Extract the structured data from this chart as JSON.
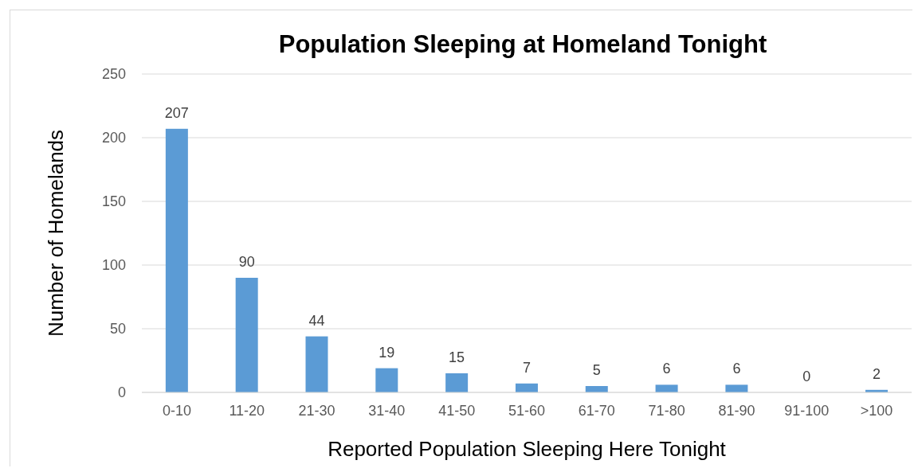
{
  "chart_data": {
    "type": "bar",
    "title": "Population Sleeping at Homeland Tonight",
    "xlabel": "Reported Population Sleeping Here Tonight",
    "ylabel": "Number of Homelands",
    "categories": [
      "0-10",
      "11-20",
      "21-30",
      "31-40",
      "41-50",
      "51-60",
      "61-70",
      "71-80",
      "81-90",
      "91-100",
      ">100"
    ],
    "values": [
      207,
      90,
      44,
      19,
      15,
      7,
      5,
      6,
      6,
      0,
      2
    ],
    "color": "#5b9bd5",
    "ylim": [
      0,
      250
    ],
    "yticks": [
      0,
      50,
      100,
      150,
      200,
      250
    ],
    "grid": "y",
    "data_labels": true
  }
}
